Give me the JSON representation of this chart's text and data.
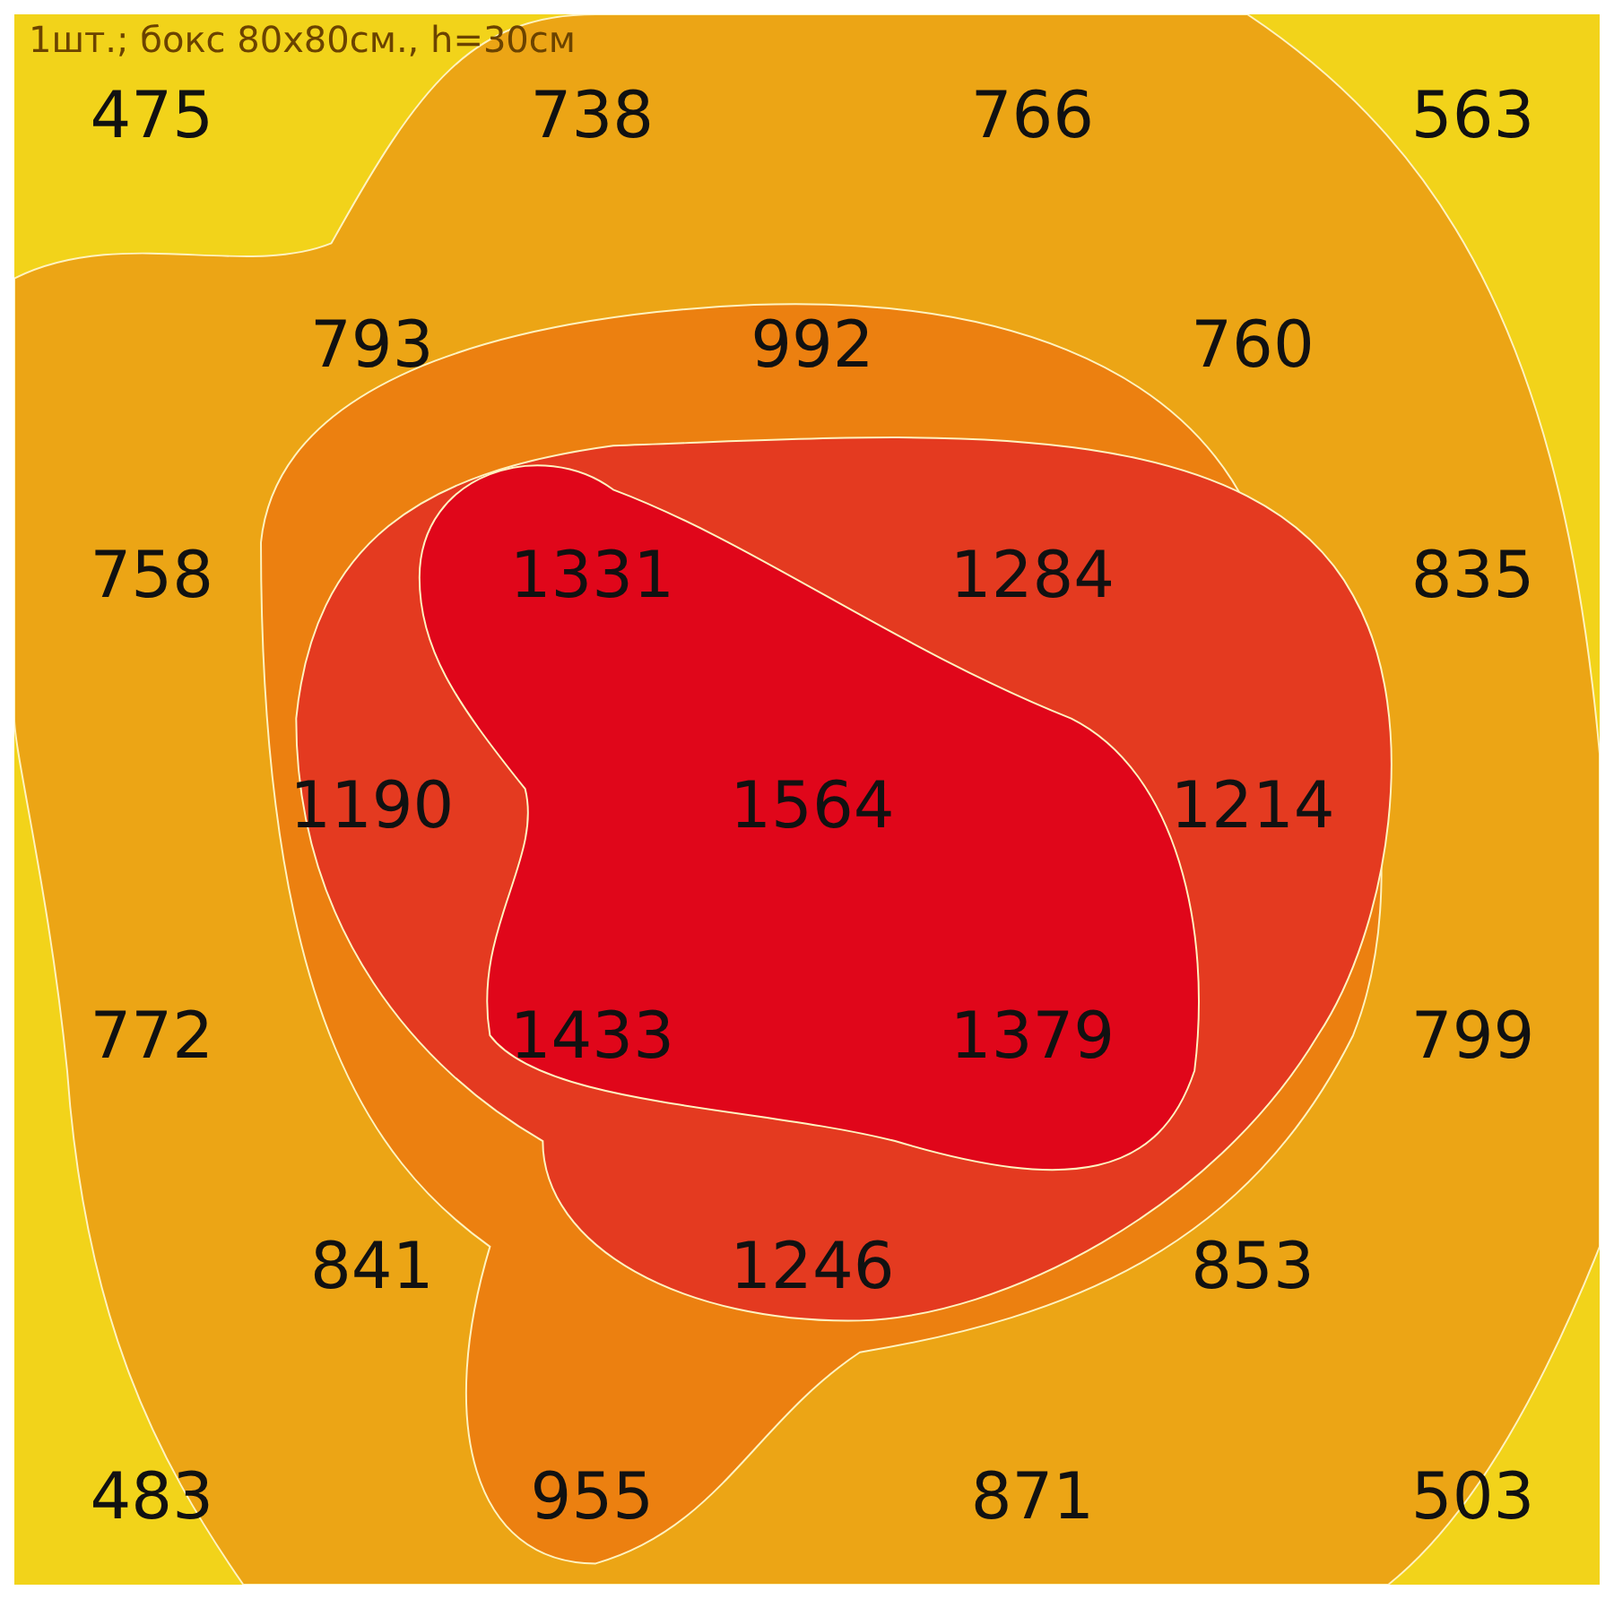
{
  "chart_data": {
    "type": "other",
    "title": "1шт.; бокс 80x80см., h=30см",
    "values": [
      475,
      738,
      766,
      563,
      793,
      992,
      760,
      758,
      1331,
      1284,
      835,
      1190,
      1564,
      1214,
      772,
      1433,
      1379,
      799,
      841,
      1246,
      853,
      483,
      955,
      871,
      503
    ],
    "data_labels": true
  }
}
